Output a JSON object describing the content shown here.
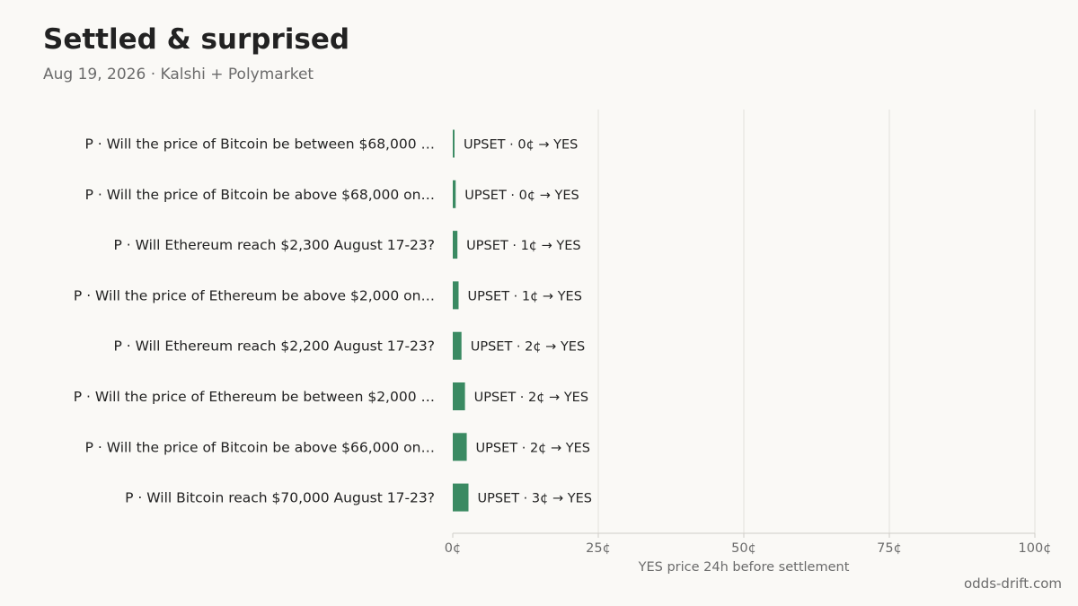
{
  "header": {
    "title": "Settled & surprised",
    "subtitle": "Aug 19, 2026 · Kalshi + Polymarket"
  },
  "footer": {
    "source": "odds-drift.com"
  },
  "colors": {
    "bar": "#3a8a62",
    "grid": "#e3e1dc",
    "axis": "#cfcdc8",
    "background": "#faf9f6"
  },
  "chart_data": {
    "type": "bar",
    "orientation": "horizontal",
    "categories": [
      "P · Will the price of Bitcoin be between $68,000 …",
      "P · Will the price of Bitcoin be above $68,000 on…",
      "P · Will Ethereum reach $2,300 August 17-23?",
      "P · Will the price of Ethereum be above $2,000 on…",
      "P · Will Ethereum reach $2,200 August 17-23?",
      "P · Will the price of Ethereum be between $2,000 …",
      "P · Will the price of Bitcoin be above $66,000 on…",
      "P · Will Bitcoin reach $70,000 August 17-23?"
    ],
    "values": [
      0.3,
      0.5,
      0.8,
      1.0,
      1.5,
      2.1,
      2.4,
      2.7
    ],
    "bar_labels": [
      "UPSET · 0¢ → YES",
      "UPSET · 0¢ → YES",
      "UPSET · 1¢ → YES",
      "UPSET · 1¢ → YES",
      "UPSET · 2¢ → YES",
      "UPSET · 2¢ → YES",
      "UPSET · 2¢ → YES",
      "UPSET · 3¢ → YES"
    ],
    "xlim": [
      0,
      100
    ],
    "xticks": [
      0,
      25,
      50,
      75,
      100
    ],
    "xtick_labels": [
      "0¢",
      "25¢",
      "50¢",
      "75¢",
      "100¢"
    ],
    "xlabel": "YES price 24h before settlement",
    "ylabel": "",
    "grid": "vertical",
    "legend": "none"
  }
}
